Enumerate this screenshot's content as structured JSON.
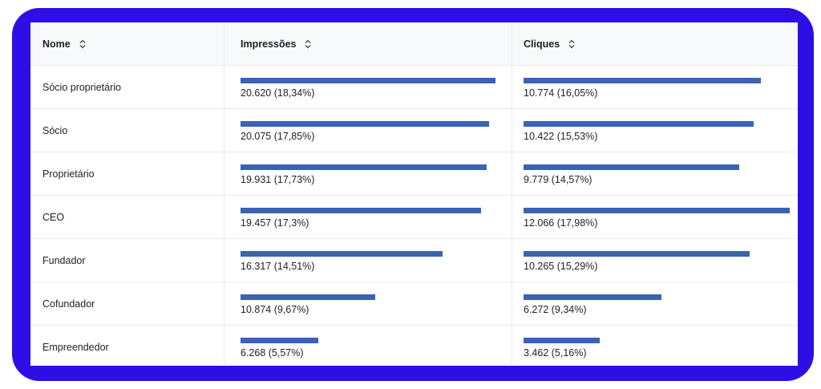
{
  "table": {
    "columns": [
      "Nome",
      "Impressões",
      "Cliques"
    ],
    "rows": [
      {
        "name": "Sócio proprietário",
        "impressions": {
          "label": "20.620 (18,34%)",
          "pct": 18.34
        },
        "clicks": {
          "label": "10.774 (16,05%)",
          "pct": 16.05
        }
      },
      {
        "name": "Sócio",
        "impressions": {
          "label": "20.075 (17,85%)",
          "pct": 17.85
        },
        "clicks": {
          "label": "10.422 (15,53%)",
          "pct": 15.53
        }
      },
      {
        "name": "Proprietário",
        "impressions": {
          "label": "19.931 (17,73%)",
          "pct": 17.73
        },
        "clicks": {
          "label": "9.779 (14,57%)",
          "pct": 14.57
        }
      },
      {
        "name": "CEO",
        "impressions": {
          "label": "19.457 (17,3%)",
          "pct": 17.3
        },
        "clicks": {
          "label": "12.066 (17,98%)",
          "pct": 17.98
        }
      },
      {
        "name": "Fundador",
        "impressions": {
          "label": "16.317 (14,51%)",
          "pct": 14.51
        },
        "clicks": {
          "label": "10.265 (15,29%)",
          "pct": 15.29
        }
      },
      {
        "name": "Cofundador",
        "impressions": {
          "label": "10.874 (9,67%)",
          "pct": 9.67
        },
        "clicks": {
          "label": "6.272 (9,34%)",
          "pct": 9.34
        }
      },
      {
        "name": "Empreendedor",
        "impressions": {
          "label": "6.268 (5,57%)",
          "pct": 5.57
        },
        "clicks": {
          "label": "3.462 (5,16%)",
          "pct": 5.16
        }
      }
    ]
  },
  "colors": {
    "frame": "#2d0ee4",
    "bar": "#3b63b4",
    "header_bg": "#f7f9fb"
  },
  "icons": {
    "sort": "sort-icon"
  }
}
